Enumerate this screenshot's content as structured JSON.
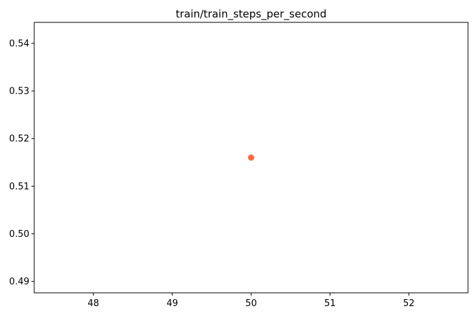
{
  "chart_data": {
    "type": "scatter",
    "title": "train/train_steps_per_second",
    "xlabel": "",
    "ylabel": "",
    "xlim": [
      47.25,
      52.75
    ],
    "ylim": [
      0.4876,
      0.5444
    ],
    "x_ticks": [
      48,
      49,
      50,
      51,
      52
    ],
    "y_ticks": [
      0.49,
      0.5,
      0.51,
      0.52,
      0.53,
      0.54
    ],
    "x_tick_labels": [
      "48",
      "49",
      "50",
      "51",
      "52"
    ],
    "y_tick_labels": [
      "0.49",
      "0.50",
      "0.51",
      "0.52",
      "0.53",
      "0.54"
    ],
    "grid": false,
    "legend": "none",
    "series": [
      {
        "x": [
          50
        ],
        "y": [
          0.516
        ],
        "color": "#ff6b3d"
      }
    ]
  }
}
